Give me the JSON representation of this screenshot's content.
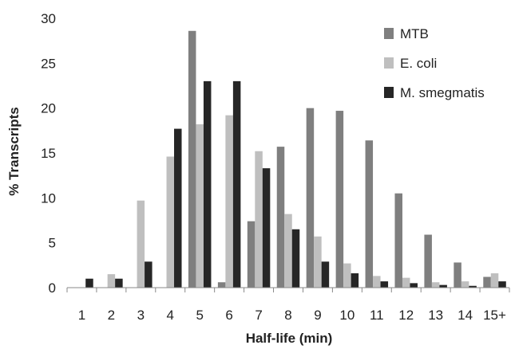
{
  "chart_data": {
    "type": "bar",
    "title": "",
    "xlabel": "Half-life (min)",
    "ylabel": "% Transcripts",
    "ylim": [
      0,
      30
    ],
    "yticks": [
      0,
      5,
      10,
      15,
      20,
      25,
      30
    ],
    "grid": false,
    "legend_position": "top-right",
    "categories": [
      "1",
      "2",
      "3",
      "4",
      "5",
      "6",
      "7",
      "8",
      "9",
      "10",
      "11",
      "12",
      "13",
      "14",
      "15+"
    ],
    "series": [
      {
        "name": "MTB",
        "color": "#7f7f7f",
        "values": [
          0,
          0,
          0,
          0,
          28.6,
          0.6,
          7.4,
          15.7,
          20.0,
          19.7,
          16.4,
          10.5,
          5.9,
          2.8,
          1.2
        ]
      },
      {
        "name": "E. coli",
        "color": "#bfbfbf",
        "values": [
          0,
          1.5,
          9.7,
          14.6,
          18.2,
          19.2,
          15.2,
          8.2,
          5.7,
          2.7,
          1.3,
          1.1,
          0.6,
          0.7,
          1.6
        ]
      },
      {
        "name": "M. smegmatis",
        "color": "#262626",
        "values": [
          1.0,
          1.0,
          2.9,
          17.7,
          23.0,
          23.0,
          13.3,
          6.5,
          2.9,
          1.6,
          0.7,
          0.5,
          0.3,
          0.2,
          0.7
        ]
      }
    ]
  }
}
